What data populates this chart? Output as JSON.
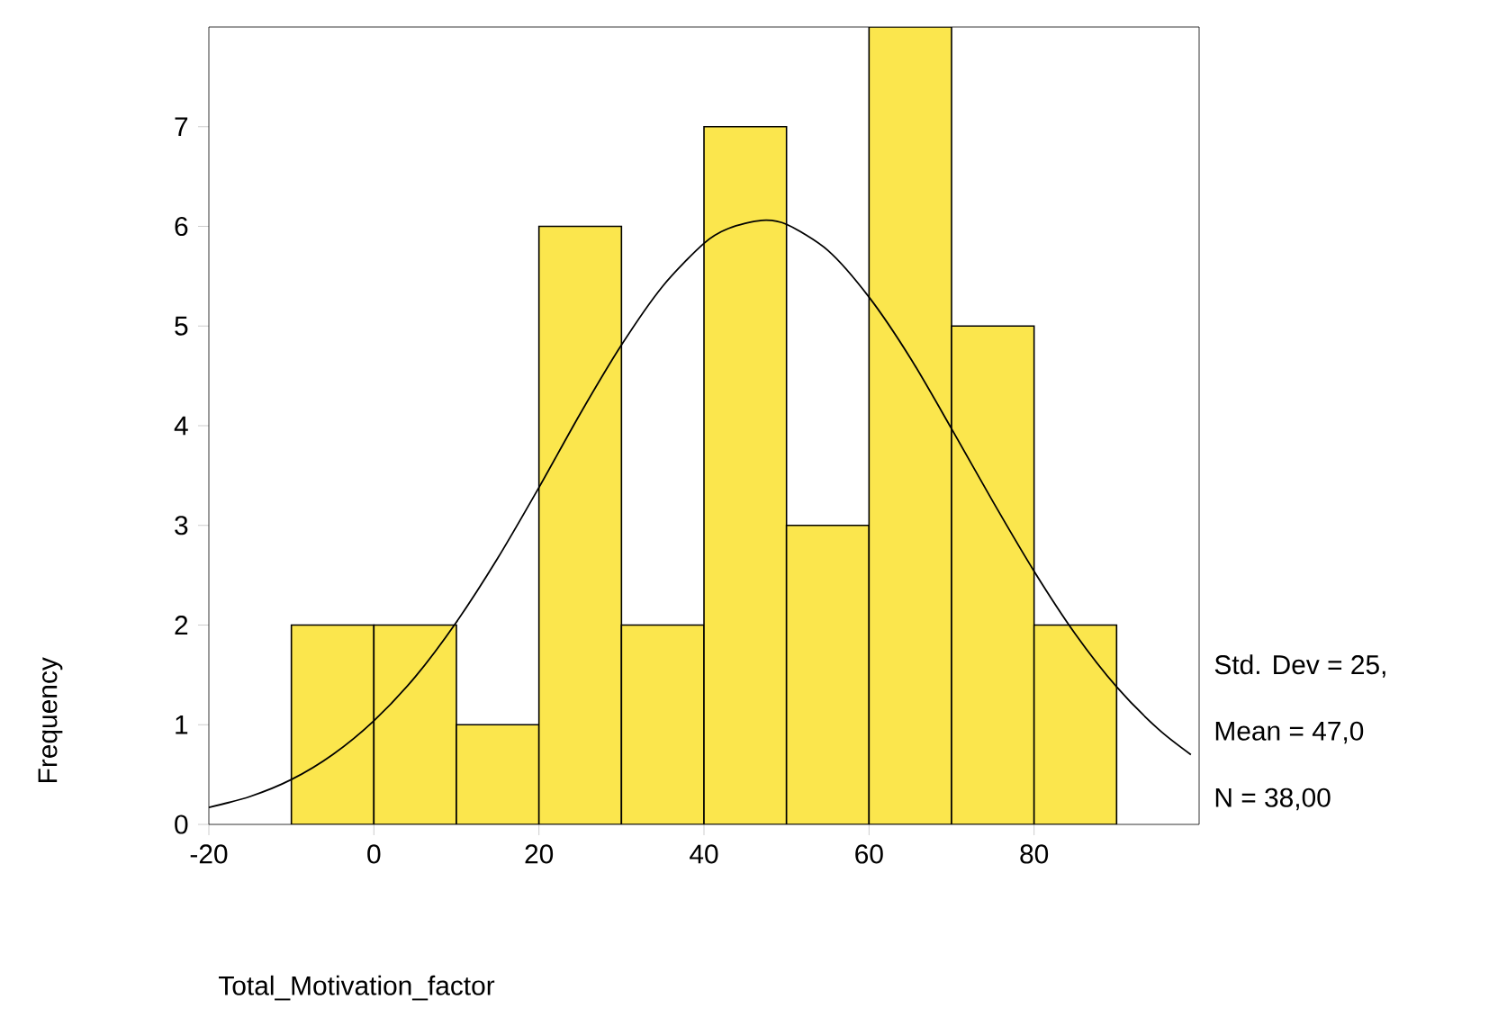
{
  "chart_data": {
    "type": "histogram",
    "xlabel": "Total_Motivation_factor",
    "ylabel": "Frequency",
    "bins": [
      -10,
      0,
      10,
      20,
      30,
      40,
      50,
      60,
      70,
      80,
      90
    ],
    "values": [
      2,
      2,
      1,
      6,
      2,
      7,
      3,
      8,
      5,
      2
    ],
    "color": "#fbe64d",
    "series": [
      {
        "type": "line",
        "color": "#000000",
        "x": [
          -20,
          -15,
          -10,
          -5,
          0,
          5,
          10,
          15,
          20,
          25,
          30,
          35,
          40,
          43,
          47,
          50,
          55,
          60,
          65,
          70,
          75,
          80,
          85,
          90,
          95,
          99
        ],
        "values": [
          0.17,
          0.28,
          0.45,
          0.7,
          1.04,
          1.48,
          2.03,
          2.67,
          3.38,
          4.12,
          4.81,
          5.4,
          5.83,
          5.98,
          6.06,
          6.02,
          5.76,
          5.29,
          4.68,
          3.97,
          3.24,
          2.54,
          1.91,
          1.38,
          0.96,
          0.7
        ]
      }
    ],
    "xlim": [
      -20,
      100
    ],
    "xticks": [
      -20,
      0,
      20,
      40,
      60,
      80
    ],
    "ylim": [
      0,
      8
    ],
    "yticks": [
      0,
      1,
      2,
      3,
      4,
      5,
      6,
      7
    ],
    "grid": false,
    "annotations": [
      "Std. Dev = 25,",
      "Mean = 47,0",
      "N = 38,00"
    ]
  }
}
